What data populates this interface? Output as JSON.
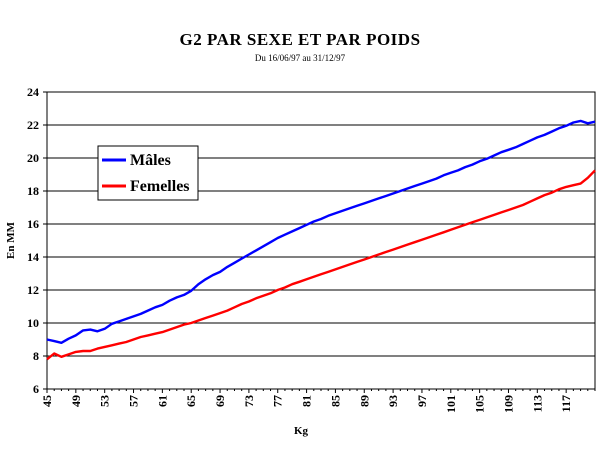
{
  "chart_data": {
    "type": "line",
    "title": "G2 PAR SEXE ET PAR POIDS",
    "subtitle": "Du 16/06/97 au 31/12/97",
    "xlabel": "Kg",
    "ylabel": "En MM",
    "xlim": [
      45,
      121
    ],
    "ylim": [
      6,
      24
    ],
    "y_ticks": [
      6,
      8,
      10,
      12,
      14,
      16,
      18,
      20,
      22,
      24
    ],
    "x_ticks": [
      45,
      49,
      53,
      57,
      61,
      65,
      69,
      73,
      77,
      81,
      85,
      89,
      93,
      97,
      101,
      105,
      109,
      113,
      117
    ],
    "grid": "horizontal",
    "legend_position": "left",
    "series": [
      {
        "name": "Mâles",
        "color": "#0000ff",
        "points": [
          [
            45,
            9.0
          ],
          [
            46,
            8.9
          ],
          [
            47,
            8.8
          ],
          [
            48,
            9.05
          ],
          [
            49,
            9.25
          ],
          [
            50,
            9.55
          ],
          [
            51,
            9.6
          ],
          [
            52,
            9.5
          ],
          [
            53,
            9.65
          ],
          [
            54,
            9.95
          ],
          [
            55,
            10.1
          ],
          [
            56,
            10.25
          ],
          [
            57,
            10.4
          ],
          [
            58,
            10.55
          ],
          [
            59,
            10.75
          ],
          [
            60,
            10.95
          ],
          [
            61,
            11.1
          ],
          [
            62,
            11.35
          ],
          [
            63,
            11.55
          ],
          [
            64,
            11.7
          ],
          [
            65,
            11.95
          ],
          [
            66,
            12.35
          ],
          [
            67,
            12.65
          ],
          [
            68,
            12.9
          ],
          [
            69,
            13.1
          ],
          [
            70,
            13.4
          ],
          [
            71,
            13.65
          ],
          [
            72,
            13.9
          ],
          [
            73,
            14.15
          ],
          [
            74,
            14.4
          ],
          [
            75,
            14.65
          ],
          [
            76,
            14.9
          ],
          [
            77,
            15.15
          ],
          [
            78,
            15.35
          ],
          [
            79,
            15.55
          ],
          [
            80,
            15.75
          ],
          [
            81,
            15.95
          ],
          [
            82,
            16.15
          ],
          [
            83,
            16.3
          ],
          [
            84,
            16.5
          ],
          [
            85,
            16.65
          ],
          [
            86,
            16.8
          ],
          [
            87,
            16.95
          ],
          [
            88,
            17.1
          ],
          [
            89,
            17.25
          ],
          [
            90,
            17.4
          ],
          [
            91,
            17.55
          ],
          [
            92,
            17.7
          ],
          [
            93,
            17.85
          ],
          [
            94,
            18.0
          ],
          [
            95,
            18.15
          ],
          [
            96,
            18.3
          ],
          [
            97,
            18.45
          ],
          [
            98,
            18.6
          ],
          [
            99,
            18.75
          ],
          [
            100,
            18.95
          ],
          [
            101,
            19.1
          ],
          [
            102,
            19.25
          ],
          [
            103,
            19.45
          ],
          [
            104,
            19.6
          ],
          [
            105,
            19.8
          ],
          [
            106,
            19.95
          ],
          [
            107,
            20.15
          ],
          [
            108,
            20.35
          ],
          [
            109,
            20.5
          ],
          [
            110,
            20.65
          ],
          [
            111,
            20.85
          ],
          [
            112,
            21.05
          ],
          [
            113,
            21.25
          ],
          [
            114,
            21.4
          ],
          [
            115,
            21.6
          ],
          [
            116,
            21.8
          ],
          [
            117,
            21.95
          ],
          [
            118,
            22.15
          ],
          [
            119,
            22.25
          ],
          [
            120,
            22.1
          ],
          [
            121,
            22.2
          ]
        ]
      },
      {
        "name": "Femelles",
        "color": "#ff0000",
        "points": [
          [
            45,
            7.8
          ],
          [
            46,
            8.15
          ],
          [
            47,
            7.95
          ],
          [
            48,
            8.1
          ],
          [
            49,
            8.25
          ],
          [
            50,
            8.3
          ],
          [
            51,
            8.3
          ],
          [
            52,
            8.45
          ],
          [
            53,
            8.55
          ],
          [
            54,
            8.65
          ],
          [
            55,
            8.75
          ],
          [
            56,
            8.85
          ],
          [
            57,
            9.0
          ],
          [
            58,
            9.15
          ],
          [
            59,
            9.25
          ],
          [
            60,
            9.35
          ],
          [
            61,
            9.45
          ],
          [
            62,
            9.6
          ],
          [
            63,
            9.75
          ],
          [
            64,
            9.9
          ],
          [
            65,
            10.0
          ],
          [
            66,
            10.15
          ],
          [
            67,
            10.3
          ],
          [
            68,
            10.45
          ],
          [
            69,
            10.6
          ],
          [
            70,
            10.75
          ],
          [
            71,
            10.95
          ],
          [
            72,
            11.15
          ],
          [
            73,
            11.3
          ],
          [
            74,
            11.5
          ],
          [
            75,
            11.65
          ],
          [
            76,
            11.8
          ],
          [
            77,
            12.0
          ],
          [
            78,
            12.15
          ],
          [
            79,
            12.35
          ],
          [
            80,
            12.5
          ],
          [
            81,
            12.65
          ],
          [
            82,
            12.8
          ],
          [
            83,
            12.95
          ],
          [
            84,
            13.1
          ],
          [
            85,
            13.25
          ],
          [
            86,
            13.4
          ],
          [
            87,
            13.55
          ],
          [
            88,
            13.7
          ],
          [
            89,
            13.85
          ],
          [
            90,
            14.0
          ],
          [
            91,
            14.15
          ],
          [
            92,
            14.3
          ],
          [
            93,
            14.45
          ],
          [
            94,
            14.6
          ],
          [
            95,
            14.75
          ],
          [
            96,
            14.9
          ],
          [
            97,
            15.05
          ],
          [
            98,
            15.2
          ],
          [
            99,
            15.35
          ],
          [
            100,
            15.5
          ],
          [
            101,
            15.65
          ],
          [
            102,
            15.8
          ],
          [
            103,
            15.95
          ],
          [
            104,
            16.1
          ],
          [
            105,
            16.25
          ],
          [
            106,
            16.4
          ],
          [
            107,
            16.55
          ],
          [
            108,
            16.7
          ],
          [
            109,
            16.85
          ],
          [
            110,
            17.0
          ],
          [
            111,
            17.15
          ],
          [
            112,
            17.35
          ],
          [
            113,
            17.55
          ],
          [
            114,
            17.75
          ],
          [
            115,
            17.9
          ],
          [
            116,
            18.1
          ],
          [
            117,
            18.25
          ],
          [
            118,
            18.35
          ],
          [
            119,
            18.45
          ],
          [
            120,
            18.8
          ],
          [
            121,
            19.25
          ]
        ]
      }
    ]
  }
}
